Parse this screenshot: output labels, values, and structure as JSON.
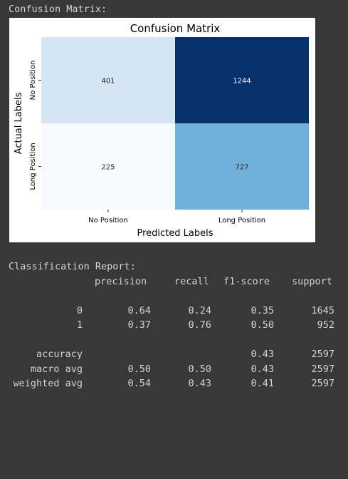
{
  "output": {
    "cm_label": "Confusion Matrix:",
    "report_label": "Classification Report:"
  },
  "chart_data": {
    "type": "heatmap",
    "title": "Confusion Matrix",
    "xlabel": "Predicted Labels",
    "ylabel": "Actual Labels",
    "x_categories": [
      "No Position",
      "Long Position"
    ],
    "y_categories": [
      "No Position",
      "Long Position"
    ],
    "values": [
      [
        401,
        1244
      ],
      [
        225,
        727
      ]
    ],
    "colormap": "Blues",
    "colors": {
      "low": "#f7fbff",
      "high": "#08306b"
    }
  },
  "report": {
    "headers": [
      "precision",
      "recall",
      "f1-score",
      "support"
    ],
    "rows": [
      {
        "label": "0",
        "precision": "0.64",
        "recall": "0.24",
        "f1": "0.35",
        "support": "1645"
      },
      {
        "label": "1",
        "precision": "0.37",
        "recall": "0.76",
        "f1": "0.50",
        "support": "952"
      }
    ],
    "summary": [
      {
        "label": "accuracy",
        "precision": "",
        "recall": "",
        "f1": "0.43",
        "support": "2597"
      },
      {
        "label": "macro avg",
        "precision": "0.50",
        "recall": "0.50",
        "f1": "0.43",
        "support": "2597"
      },
      {
        "label": "weighted avg",
        "precision": "0.54",
        "recall": "0.43",
        "f1": "0.41",
        "support": "2597"
      }
    ]
  }
}
